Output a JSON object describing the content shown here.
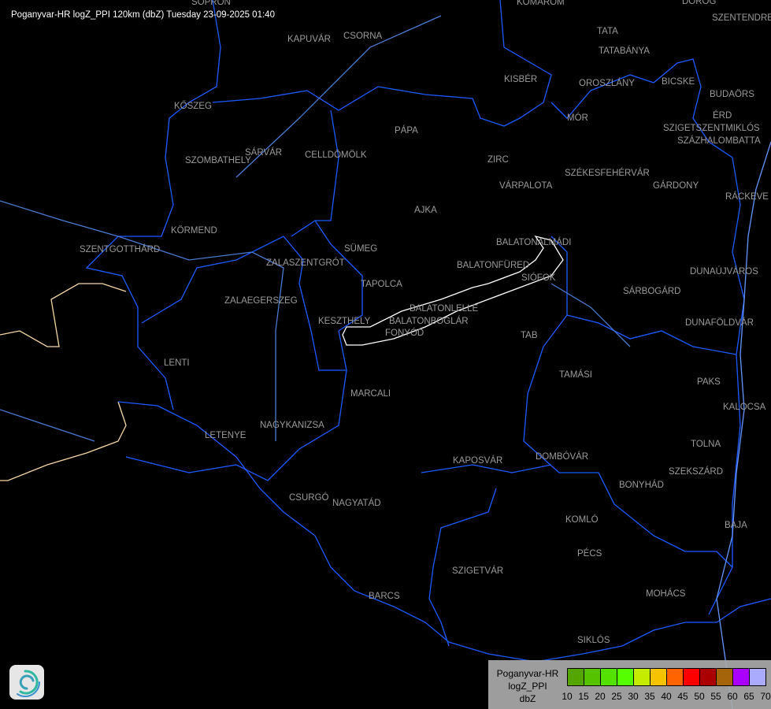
{
  "title": "Poganyvar-HR logZ_PPI 120km (dbZ) Tuesday 23-09-2025 01:40",
  "cities": [
    "SOPRON",
    "KOMÁROM",
    "DOROG",
    "SZENTENDRE",
    "KAPUVÁR",
    "CSORNA",
    "TATA",
    "TATABÁNYA",
    "KISBÉR",
    "OROSZLÁNY",
    "BICSKE",
    "BUDAÖRS",
    "ÉRD",
    "SZIGETSZENTMIKLÓS",
    "SZÁZHALOMBATTA",
    "KŐSZEG",
    "PÁPA",
    "SÁRVÁR",
    "CELLDÖMÖLK",
    "SZOMBATHELY",
    "ZIRC",
    "MÓR",
    "VÁRPALOTA",
    "SZÉKESFEHÉRVÁR",
    "GÁRDONY",
    "RÁCKEVE",
    "AJKA",
    "KÖRMEND",
    "BALATONALMÁDI",
    "SZENTGOTTHÁRD",
    "SÜMEG",
    "ZALASZENTGRÓT",
    "BALATONFÜRED",
    "SIÓFOK",
    "DUNAÚJVÁROS",
    "TAPOLCA",
    "SÁRBOGÁRD",
    "ZALAEGERSZEG",
    "KESZTHELY",
    "BALATONLELLE",
    "BALATONBOGLÁR",
    "FONYÓD",
    "DUNAFÖLDVÁR",
    "TAB",
    "LENTI",
    "TAMÁSI",
    "PAKS",
    "MARCALI",
    "KALOCSA",
    "NAGYKANIZSA",
    "LETENYE",
    "TOLNA",
    "KAPOSVÁR",
    "DOMBÓVÁR",
    "SZEKSZÁRD",
    "BONYHÁD",
    "CSURGÓ",
    "NAGYATÁD",
    "KOMLÓ",
    "BAJA",
    "PÉCS",
    "SZIGETVÁR",
    "MOHÁCS",
    "BARCS",
    "SIKLÓS"
  ],
  "legend": {
    "lines": [
      "Poganyvar-HR",
      "logZ_PPI",
      "dbZ"
    ],
    "colors": [
      "#55a500",
      "#55c300",
      "#55e100",
      "#55ff00",
      "#c3ec00",
      "#f5c300",
      "#ff6400",
      "#ff0000",
      "#aa0000",
      "#a5640a",
      "#aa00ff",
      "#aaaaff"
    ],
    "ticks": [
      "10",
      "15",
      "20",
      "25",
      "30",
      "35",
      "40",
      "45",
      "50",
      "55",
      "60",
      "65",
      "70"
    ]
  },
  "colors": {
    "border": "#1e5aff",
    "river": "#6496ff",
    "country": "#f5d7a5",
    "lake": "#ffffff",
    "label": "#9a9a9a"
  },
  "logo_icon": "swirl-logo-icon"
}
